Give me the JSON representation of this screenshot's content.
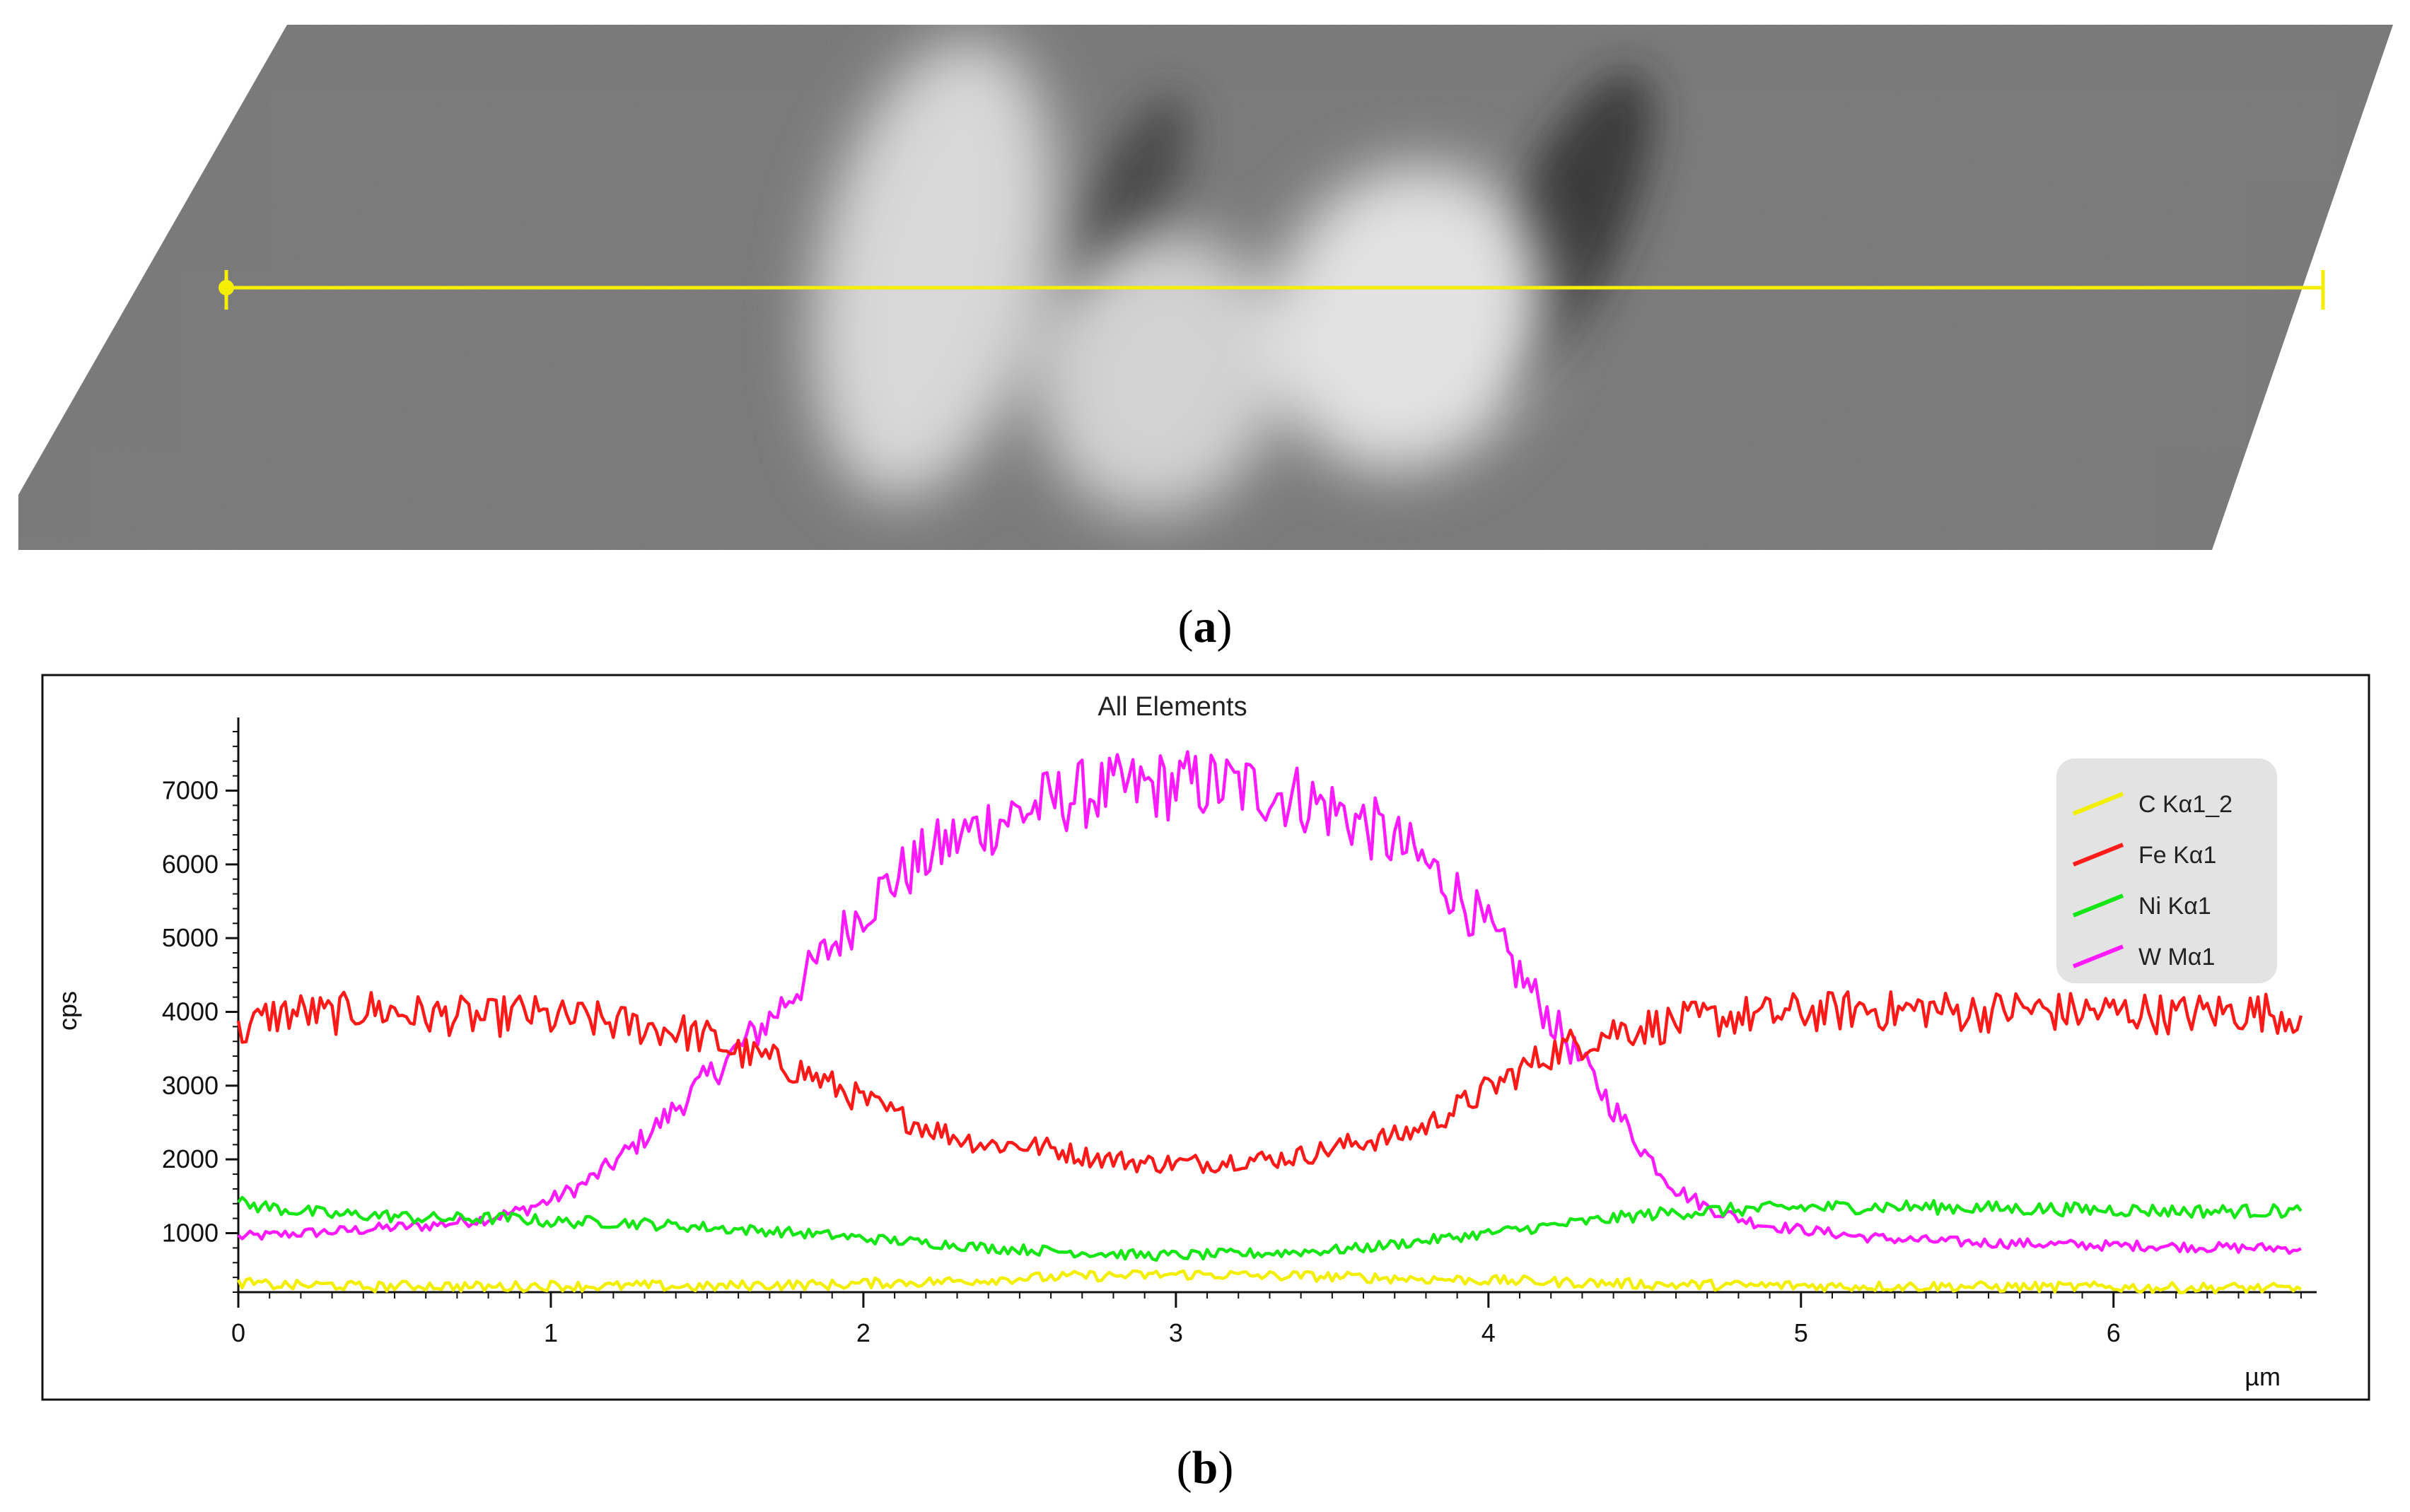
{
  "panel_a": {
    "caption_open": "(",
    "caption_letter": "a",
    "caption_close": ")",
    "line_color": "#f4ee00"
  },
  "panel_b": {
    "caption_open": "(",
    "caption_letter": "b",
    "caption_close": ")"
  },
  "chart_data": {
    "type": "line",
    "title": "All Elements",
    "xlabel": "µm",
    "ylabel": "cps",
    "xlim": [
      0,
      6.65
    ],
    "ylim": [
      200,
      7800
    ],
    "x_ticks": [
      "0",
      "1",
      "2",
      "3",
      "4",
      "5",
      "6"
    ],
    "y_ticks": [
      "1000",
      "2000",
      "3000",
      "4000",
      "5000",
      "6000",
      "7000"
    ],
    "x_step": 0.1,
    "x_end": 6.6,
    "legend_position": "top-right",
    "series": [
      {
        "name": "C Kα1_2",
        "color": "#f2ef00",
        "values": [
          330,
          300,
          290,
          300,
          270,
          280,
          290,
          280,
          270,
          280,
          290,
          280,
          280,
          290,
          280,
          270,
          290,
          300,
          300,
          300,
          320,
          330,
          340,
          350,
          370,
          390,
          400,
          420,
          420,
          430,
          440,
          440,
          430,
          420,
          420,
          410,
          400,
          390,
          380,
          370,
          360,
          350,
          340,
          330,
          320,
          310,
          300,
          300,
          290,
          290,
          290,
          280,
          280,
          280,
          280,
          280,
          270,
          270,
          270,
          270,
          270,
          260,
          260,
          260,
          260,
          250,
          240
        ]
      },
      {
        "name": "Fe Kα1",
        "color": "#ff1a1a",
        "values": [
          3700,
          3950,
          4000,
          3950,
          4050,
          4000,
          3950,
          3950,
          3900,
          4000,
          3900,
          3900,
          3850,
          3800,
          3750,
          3650,
          3450,
          3350,
          3200,
          3000,
          2800,
          2600,
          2450,
          2300,
          2200,
          2200,
          2150,
          2050,
          2000,
          1950,
          1950,
          1950,
          2000,
          2000,
          2050,
          2150,
          2250,
          2300,
          2450,
          2700,
          2950,
          3200,
          3450,
          3600,
          3750,
          3800,
          3850,
          3900,
          3950,
          3950,
          4000,
          4000,
          4050,
          4000,
          4050,
          4000,
          4000,
          4050,
          4000,
          4000,
          4000,
          4000,
          3950,
          4000,
          4000,
          4000,
          3950
        ]
      },
      {
        "name": "Ni Kα1",
        "color": "#16e516",
        "values": [
          1400,
          1350,
          1300,
          1250,
          1250,
          1230,
          1200,
          1200,
          1200,
          1200,
          1150,
          1150,
          1150,
          1130,
          1100,
          1080,
          1050,
          1030,
          1000,
          970,
          930,
          900,
          870,
          840,
          800,
          780,
          760,
          740,
          720,
          700,
          700,
          710,
          720,
          730,
          750,
          770,
          800,
          850,
          900,
          950,
          1000,
          1050,
          1100,
          1150,
          1200,
          1250,
          1280,
          1300,
          1320,
          1330,
          1350,
          1350,
          1360,
          1360,
          1350,
          1350,
          1340,
          1330,
          1330,
          1320,
          1320,
          1310,
          1300,
          1300,
          1300,
          1300,
          1300
        ]
      },
      {
        "name": "W Mα1",
        "color": "#ff1aff",
        "values": [
          950,
          970,
          1000,
          1020,
          1050,
          1080,
          1100,
          1150,
          1200,
          1300,
          1450,
          1650,
          1950,
          2300,
          2700,
          3100,
          3500,
          3900,
          4400,
          4900,
          5400,
          5800,
          6100,
          6350,
          6550,
          6700,
          6850,
          6950,
          7000,
          7050,
          7080,
          7080,
          7050,
          7000,
          6900,
          6750,
          6550,
          6300,
          6000,
          5600,
          5100,
          4500,
          3900,
          3300,
          2700,
          2100,
          1600,
          1350,
          1200,
          1100,
          1050,
          1000,
          950,
          920,
          900,
          880,
          870,
          860,
          850,
          840,
          830,
          830,
          820,
          810,
          800,
          800,
          790
        ]
      }
    ]
  }
}
